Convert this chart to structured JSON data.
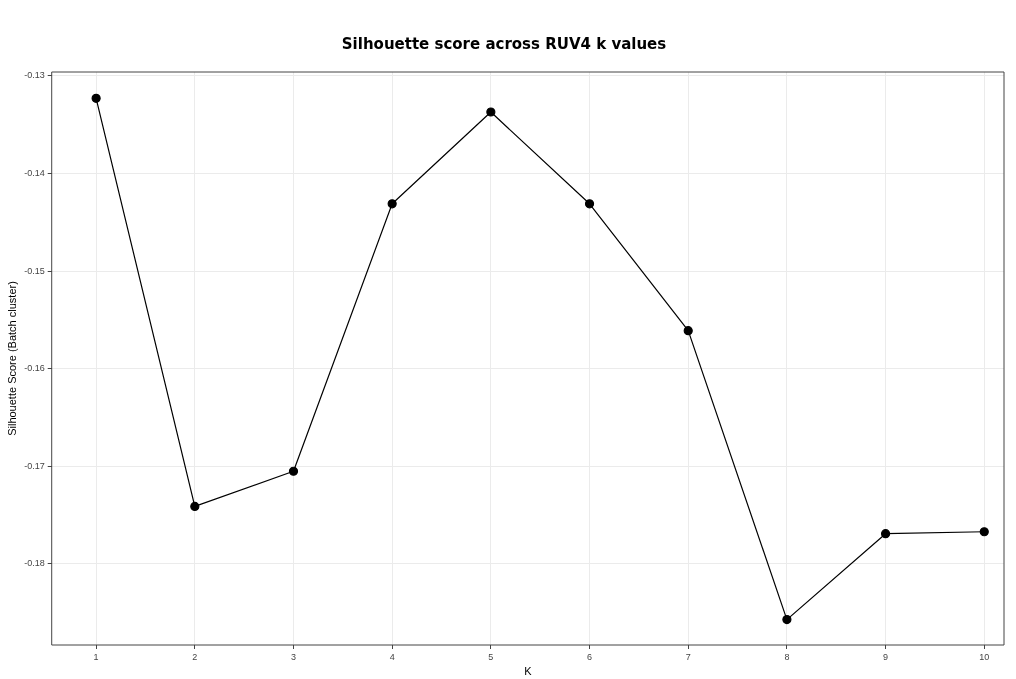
{
  "chart_data": {
    "type": "line",
    "title": "Silhouette score across RUV4 k values",
    "xlabel": "K",
    "ylabel": "Silhouette Score (Batch cluster)",
    "x": [
      1,
      2,
      3,
      4,
      5,
      6,
      7,
      8,
      9,
      10
    ],
    "series": [
      {
        "color": "#000000",
        "values": [
          -0.1323,
          -0.1741,
          -0.1705,
          -0.1431,
          -0.1337,
          -0.1431,
          -0.1561,
          -0.1857,
          -0.1769,
          -0.1767
        ]
      }
    ],
    "xlim": [
      0.55,
      10.2
    ],
    "xticks": [
      1,
      2,
      3,
      4,
      5,
      6,
      7,
      8,
      9,
      10
    ],
    "ylim": [
      -0.1883,
      -0.1296
    ],
    "yticks": [
      -0.18,
      -0.17,
      -0.16,
      -0.15,
      -0.14,
      -0.13
    ],
    "grid": true,
    "legend": false,
    "marker": "circle",
    "line_style": "solid"
  }
}
